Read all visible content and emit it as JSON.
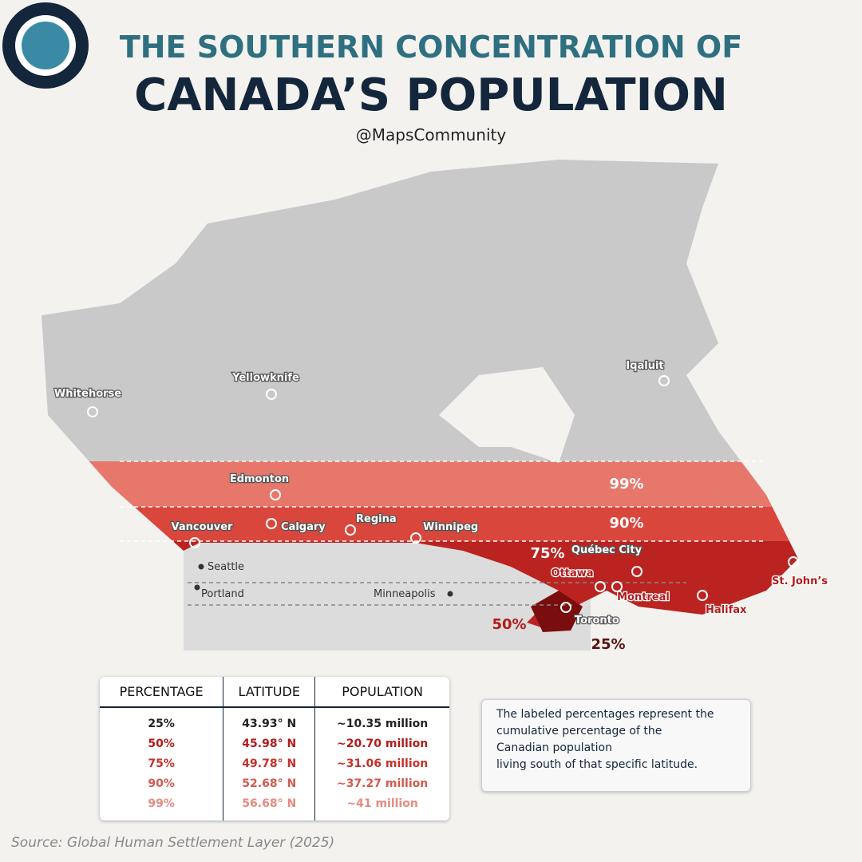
{
  "header": {
    "title_line1": "THE SOUTHERN CONCENTRATION OF",
    "title_line2": "CANADA’S POPULATION",
    "handle": "@MapsCommunity"
  },
  "map": {
    "cities": [
      "Whitehorse",
      "Yellowknife",
      "Iqaluit",
      "Edmonton",
      "Calgary",
      "Regina",
      "Vancouver",
      "Winnipeg",
      "Québec City",
      "Ottawa",
      "Montreal",
      "Toronto",
      "Halifax",
      "St. John’s",
      "Seattle",
      "Portland",
      "Minneapolis"
    ],
    "band_labels": [
      "99%",
      "90%",
      "75%",
      "50%",
      "25%"
    ]
  },
  "table": {
    "headers": [
      "PERCENTAGE",
      "LATITUDE",
      "POPULATION"
    ],
    "rows": [
      [
        "25%",
        "43.93° N",
        "~10.35 million"
      ],
      [
        "50%",
        "45.98° N",
        "~20.70 million"
      ],
      [
        "75%",
        "49.78° N",
        "~31.06 million"
      ],
      [
        "90%",
        "52.68° N",
        "~37.27 million"
      ],
      [
        "99%",
        "56.68° N",
        "~41 million"
      ]
    ]
  },
  "note": {
    "lines": [
      "The labeled percentages represent the",
      "cumulative percentage of the",
      "Canadian population",
      "living south of that specific latitude."
    ]
  },
  "source": "Source: Global Human Settlement Layer (2025)"
}
